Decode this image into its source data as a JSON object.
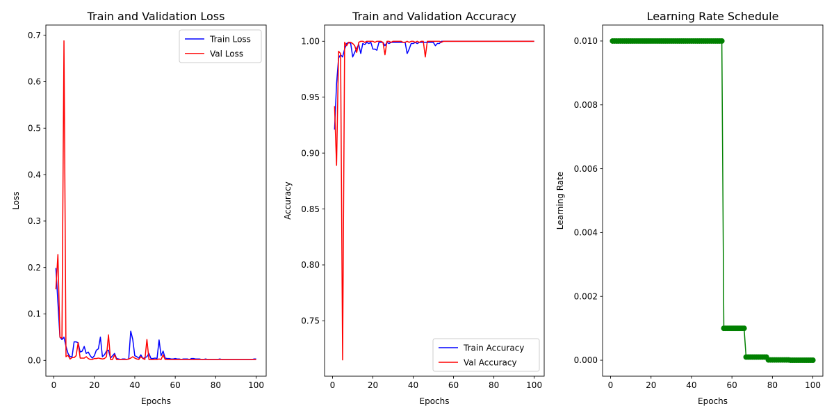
{
  "chart_data": [
    {
      "type": "line",
      "title": "Train and Validation Loss",
      "xlabel": "Epochs",
      "ylabel": "Loss",
      "xlim": [
        -3.95,
        104.95
      ],
      "ylim": [
        -0.034,
        0.722
      ],
      "xticks": [
        0,
        20,
        40,
        60,
        80,
        100
      ],
      "yticks": [
        0.0,
        0.1,
        0.2,
        0.3,
        0.4,
        0.5,
        0.6,
        0.7
      ],
      "ytick_labels": [
        "0.0",
        "0.1",
        "0.2",
        "0.3",
        "0.4",
        "0.5",
        "0.6",
        "0.7"
      ],
      "legend": "upper right",
      "legend_position": "top-right",
      "grid": false,
      "series": [
        {
          "name": "Train Loss",
          "color": "#0000ff",
          "x": [
            1,
            2,
            3,
            4,
            5,
            6,
            7,
            8,
            9,
            10,
            11,
            12,
            13,
            14,
            15,
            16,
            17,
            18,
            19,
            20,
            21,
            22,
            23,
            24,
            25,
            26,
            27,
            28,
            29,
            30,
            31,
            32,
            33,
            34,
            35,
            36,
            37,
            38,
            39,
            40,
            41,
            42,
            43,
            44,
            45,
            46,
            47,
            48,
            49,
            50,
            51,
            52,
            53,
            54,
            55,
            56,
            57,
            58,
            59,
            60,
            61,
            62,
            63,
            64,
            65,
            66,
            67,
            68,
            69,
            70,
            71,
            72,
            73,
            74,
            75,
            76,
            77,
            78,
            79,
            80,
            81,
            82,
            83,
            84,
            85,
            86,
            87,
            88,
            89,
            90,
            91,
            92,
            93,
            94,
            95,
            96,
            97,
            98,
            99,
            100
          ],
          "y": [
            0.199,
            0.125,
            0.05,
            0.045,
            0.05,
            0.03,
            0.015,
            0.008,
            0.008,
            0.04,
            0.04,
            0.038,
            0.018,
            0.02,
            0.03,
            0.015,
            0.018,
            0.01,
            0.005,
            0.01,
            0.022,
            0.025,
            0.05,
            0.008,
            0.012,
            0.02,
            0.022,
            0.005,
            0.01,
            0.015,
            0.004,
            0.003,
            0.002,
            0.003,
            0.003,
            0.002,
            0.003,
            0.063,
            0.045,
            0.01,
            0.008,
            0.005,
            0.012,
            0.004,
            0.006,
            0.008,
            0.015,
            0.004,
            0.004,
            0.005,
            0.004,
            0.044,
            0.01,
            0.02,
            0.005,
            0.004,
            0.004,
            0.003,
            0.003,
            0.004,
            0.003,
            0.003,
            0.002,
            0.003,
            0.003,
            0.003,
            0.002,
            0.004,
            0.004,
            0.003,
            0.003,
            0.003,
            0.002,
            0.002,
            0.003,
            0.002,
            0.002,
            0.002,
            0.002,
            0.002,
            0.002,
            0.003,
            0.002,
            0.002,
            0.002,
            0.002,
            0.002,
            0.002,
            0.002,
            0.002,
            0.002,
            0.002,
            0.002,
            0.002,
            0.002,
            0.002,
            0.002,
            0.002,
            0.003,
            0.003
          ]
        },
        {
          "name": "Val Loss",
          "color": "#ff0000",
          "x": [
            1,
            2,
            3,
            4,
            5,
            6,
            7,
            8,
            9,
            10,
            11,
            12,
            13,
            14,
            15,
            16,
            17,
            18,
            19,
            20,
            21,
            22,
            23,
            24,
            25,
            26,
            27,
            28,
            29,
            30,
            31,
            32,
            33,
            34,
            35,
            36,
            37,
            38,
            39,
            40,
            41,
            42,
            43,
            44,
            45,
            46,
            47,
            48,
            49,
            50,
            51,
            52,
            53,
            54,
            55,
            56,
            57,
            58,
            59,
            60,
            61,
            62,
            63,
            64,
            65,
            66,
            67,
            68,
            69,
            70,
            71,
            72,
            73,
            74,
            75,
            76,
            77,
            78,
            79,
            80,
            81,
            82,
            83,
            84,
            85,
            86,
            87,
            88,
            89,
            90,
            91,
            92,
            93,
            94,
            95,
            96,
            97,
            98,
            99,
            100
          ],
          "y": [
            0.153,
            0.228,
            0.05,
            0.048,
            0.688,
            0.008,
            0.011,
            0.003,
            0.006,
            0.006,
            0.01,
            0.038,
            0.005,
            0.005,
            0.005,
            0.008,
            0.004,
            0.002,
            0.002,
            0.004,
            0.004,
            0.005,
            0.004,
            0.003,
            0.004,
            0.008,
            0.055,
            0.002,
            0.002,
            0.012,
            0.002,
            0.002,
            0.002,
            0.002,
            0.002,
            0.002,
            0.003,
            0.005,
            0.008,
            0.005,
            0.003,
            0.002,
            0.008,
            0.004,
            0.002,
            0.045,
            0.002,
            0.002,
            0.002,
            0.002,
            0.002,
            0.003,
            0.002,
            0.012,
            0.002,
            0.002,
            0.002,
            0.002,
            0.002,
            0.002,
            0.002,
            0.002,
            0.002,
            0.002,
            0.002,
            0.002,
            0.002,
            0.002,
            0.002,
            0.002,
            0.002,
            0.002,
            0.002,
            0.002,
            0.002,
            0.002,
            0.002,
            0.002,
            0.002,
            0.002,
            0.002,
            0.002,
            0.002,
            0.002,
            0.002,
            0.002,
            0.002,
            0.002,
            0.002,
            0.002,
            0.002,
            0.002,
            0.002,
            0.002,
            0.002,
            0.002,
            0.002,
            0.002,
            0.002,
            0.002
          ]
        }
      ]
    },
    {
      "type": "line",
      "title": "Train and Validation Accuracy",
      "xlabel": "Epochs",
      "ylabel": "Accuracy",
      "xlim": [
        -3.95,
        104.95
      ],
      "ylim": [
        0.7005,
        1.0145
      ],
      "xticks": [
        0,
        20,
        40,
        60,
        80,
        100
      ],
      "yticks": [
        0.75,
        0.8,
        0.85,
        0.9,
        0.95,
        1.0
      ],
      "ytick_labels": [
        "0.75",
        "0.80",
        "0.85",
        "0.90",
        "0.95",
        "1.00"
      ],
      "legend": "lower right",
      "legend_position": "bottom-right",
      "grid": false,
      "series": [
        {
          "name": "Train Accuracy",
          "color": "#0000ff",
          "x": [
            1,
            2,
            3,
            4,
            5,
            6,
            7,
            8,
            9,
            10,
            11,
            12,
            13,
            14,
            15,
            16,
            17,
            18,
            19,
            20,
            21,
            22,
            23,
            24,
            25,
            26,
            27,
            28,
            29,
            30,
            31,
            32,
            33,
            34,
            35,
            36,
            37,
            38,
            39,
            40,
            41,
            42,
            43,
            44,
            45,
            46,
            47,
            48,
            49,
            50,
            51,
            52,
            53,
            54,
            55,
            56,
            57,
            58,
            59,
            60,
            61,
            62,
            63,
            64,
            65,
            66,
            67,
            68,
            69,
            70,
            71,
            72,
            73,
            74,
            75,
            76,
            77,
            78,
            79,
            80,
            81,
            82,
            83,
            84,
            85,
            86,
            87,
            88,
            89,
            90,
            91,
            92,
            93,
            94,
            95,
            96,
            97,
            98,
            99,
            100
          ],
          "y": [
            0.921,
            0.962,
            0.985,
            0.988,
            0.986,
            0.993,
            0.998,
            0.999,
            0.998,
            0.986,
            0.99,
            0.994,
            0.997,
            0.989,
            0.998,
            0.997,
            0.999,
            0.998,
            0.999,
            0.993,
            0.993,
            0.992,
            0.999,
            0.999,
            0.999,
            0.996,
            0.999,
            0.998,
            0.999,
            0.999,
            0.999,
            0.999,
            0.999,
            0.999,
            0.999,
            0.999,
            0.989,
            0.993,
            0.998,
            0.998,
            0.999,
            0.998,
            0.999,
            0.999,
            0.999,
            0.999,
            0.999,
            0.999,
            0.999,
            0.999,
            0.996,
            0.998,
            0.998,
            1.0,
            1.0,
            1.0,
            1.0,
            1.0,
            1.0,
            1.0,
            1.0,
            1.0,
            1.0,
            1.0,
            1.0,
            1.0,
            1.0,
            1.0,
            1.0,
            1.0,
            1.0,
            1.0,
            1.0,
            1.0,
            1.0,
            1.0,
            1.0,
            1.0,
            1.0,
            1.0,
            1.0,
            1.0,
            1.0,
            1.0,
            1.0,
            1.0,
            1.0,
            1.0,
            1.0,
            1.0,
            1.0,
            1.0,
            1.0,
            1.0,
            1.0,
            1.0,
            1.0,
            1.0,
            1.0,
            1.0
          ]
        },
        {
          "name": "Val Accuracy",
          "color": "#ff0000",
          "x": [
            1,
            2,
            3,
            4,
            5,
            6,
            7,
            8,
            9,
            10,
            11,
            12,
            13,
            14,
            15,
            16,
            17,
            18,
            19,
            20,
            21,
            22,
            23,
            24,
            25,
            26,
            27,
            28,
            29,
            30,
            31,
            32,
            33,
            34,
            35,
            36,
            37,
            38,
            39,
            40,
            41,
            42,
            43,
            44,
            45,
            46,
            47,
            48,
            49,
            50,
            51,
            52,
            53,
            54,
            55,
            56,
            57,
            58,
            59,
            60,
            61,
            62,
            63,
            64,
            65,
            66,
            67,
            68,
            69,
            70,
            71,
            72,
            73,
            74,
            75,
            76,
            77,
            78,
            79,
            80,
            81,
            82,
            83,
            84,
            85,
            86,
            87,
            88,
            89,
            90,
            91,
            92,
            93,
            94,
            95,
            96,
            97,
            98,
            99,
            100
          ],
          "y": [
            0.942,
            0.889,
            0.991,
            0.989,
            0.715,
            0.999,
            0.996,
            0.999,
            0.999,
            0.998,
            0.996,
            0.99,
            0.999,
            1.0,
            1.0,
            0.999,
            1.0,
            1.0,
            1.0,
            1.0,
            0.999,
            1.0,
            1.0,
            1.0,
            0.999,
            0.988,
            1.0,
            1.0,
            0.999,
            1.0,
            1.0,
            1.0,
            1.0,
            1.0,
            0.999,
            0.999,
            1.0,
            0.999,
            1.0,
            1.0,
            0.999,
            1.0,
            0.999,
            1.0,
            1.0,
            0.986,
            1.0,
            1.0,
            1.0,
            1.0,
            1.0,
            1.0,
            1.0,
            0.999,
            1.0,
            1.0,
            1.0,
            1.0,
            1.0,
            1.0,
            1.0,
            1.0,
            1.0,
            1.0,
            1.0,
            1.0,
            1.0,
            1.0,
            1.0,
            1.0,
            1.0,
            1.0,
            1.0,
            1.0,
            1.0,
            1.0,
            1.0,
            1.0,
            1.0,
            1.0,
            1.0,
            1.0,
            1.0,
            1.0,
            1.0,
            1.0,
            1.0,
            1.0,
            1.0,
            1.0,
            1.0,
            1.0,
            1.0,
            1.0,
            1.0,
            1.0,
            1.0,
            1.0,
            1.0,
            1.0
          ]
        }
      ]
    },
    {
      "type": "line",
      "title": "Learning Rate Schedule",
      "xlabel": "Epochs",
      "ylabel": "Learning Rate",
      "xlim": [
        -3.95,
        104.95
      ],
      "ylim": [
        -0.0005,
        0.0105
      ],
      "xticks": [
        0,
        20,
        40,
        60,
        80,
        100
      ],
      "yticks": [
        0.0,
        0.002,
        0.004,
        0.006,
        0.008,
        0.01
      ],
      "ytick_labels": [
        "0.000",
        "0.002",
        "0.004",
        "0.006",
        "0.008",
        "0.010"
      ],
      "grid": false,
      "markers": "o",
      "series": [
        {
          "color": "#008000",
          "x": [
            1,
            2,
            3,
            4,
            5,
            6,
            7,
            8,
            9,
            10,
            11,
            12,
            13,
            14,
            15,
            16,
            17,
            18,
            19,
            20,
            21,
            22,
            23,
            24,
            25,
            26,
            27,
            28,
            29,
            30,
            31,
            32,
            33,
            34,
            35,
            36,
            37,
            38,
            39,
            40,
            41,
            42,
            43,
            44,
            45,
            46,
            47,
            48,
            49,
            50,
            51,
            52,
            53,
            54,
            55,
            56,
            57,
            58,
            59,
            60,
            61,
            62,
            63,
            64,
            65,
            66,
            67,
            68,
            69,
            70,
            71,
            72,
            73,
            74,
            75,
            76,
            77,
            78,
            79,
            80,
            81,
            82,
            83,
            84,
            85,
            86,
            87,
            88,
            89,
            90,
            91,
            92,
            93,
            94,
            95,
            96,
            97,
            98,
            99,
            100
          ],
          "y": [
            0.01,
            0.01,
            0.01,
            0.01,
            0.01,
            0.01,
            0.01,
            0.01,
            0.01,
            0.01,
            0.01,
            0.01,
            0.01,
            0.01,
            0.01,
            0.01,
            0.01,
            0.01,
            0.01,
            0.01,
            0.01,
            0.01,
            0.01,
            0.01,
            0.01,
            0.01,
            0.01,
            0.01,
            0.01,
            0.01,
            0.01,
            0.01,
            0.01,
            0.01,
            0.01,
            0.01,
            0.01,
            0.01,
            0.01,
            0.01,
            0.01,
            0.01,
            0.01,
            0.01,
            0.01,
            0.01,
            0.01,
            0.01,
            0.01,
            0.01,
            0.01,
            0.01,
            0.01,
            0.01,
            0.01,
            0.001,
            0.001,
            0.001,
            0.001,
            0.001,
            0.001,
            0.001,
            0.001,
            0.001,
            0.001,
            0.001,
            0.0001,
            0.0001,
            0.0001,
            0.0001,
            0.0001,
            0.0001,
            0.0001,
            0.0001,
            0.0001,
            0.0001,
            0.0001,
            1e-05,
            1e-05,
            1e-05,
            1e-05,
            1e-05,
            1e-05,
            1e-05,
            1e-05,
            1e-05,
            1e-05,
            1e-05,
            1e-06,
            1e-06,
            1e-06,
            1e-06,
            1e-06,
            1e-06,
            1e-06,
            1e-06,
            1e-06,
            1e-06,
            1e-06,
            1e-06
          ]
        }
      ]
    }
  ]
}
